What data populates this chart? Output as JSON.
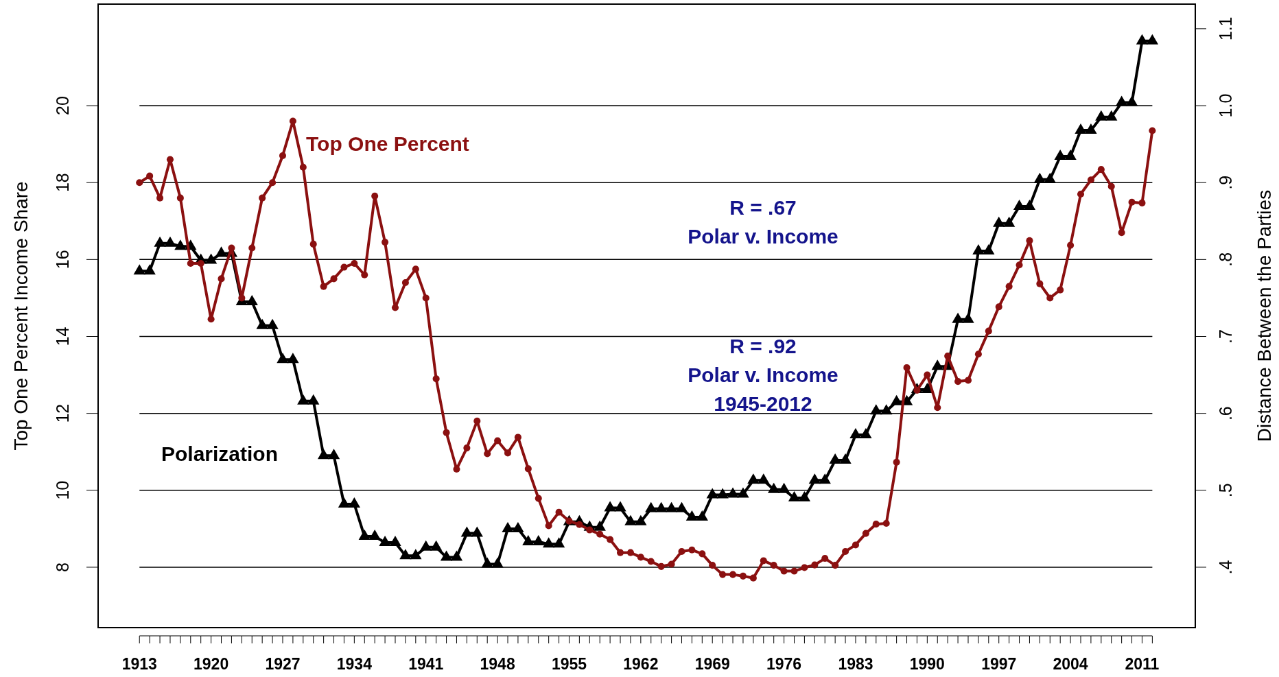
{
  "chart_data": {
    "type": "line",
    "ylabel": "Top One Percent Income Share",
    "y2label": "Distance Between the Parties",
    "x": [
      1913,
      1914,
      1915,
      1916,
      1917,
      1918,
      1919,
      1920,
      1921,
      1922,
      1923,
      1924,
      1925,
      1926,
      1927,
      1928,
      1929,
      1930,
      1931,
      1932,
      1933,
      1934,
      1935,
      1936,
      1937,
      1938,
      1939,
      1940,
      1941,
      1942,
      1943,
      1944,
      1945,
      1946,
      1947,
      1948,
      1949,
      1950,
      1951,
      1952,
      1953,
      1954,
      1955,
      1956,
      1957,
      1958,
      1959,
      1960,
      1961,
      1962,
      1963,
      1964,
      1965,
      1966,
      1967,
      1968,
      1969,
      1970,
      1971,
      1972,
      1973,
      1974,
      1975,
      1976,
      1977,
      1978,
      1979,
      1980,
      1981,
      1982,
      1983,
      1984,
      1985,
      1986,
      1987,
      1988,
      1989,
      1990,
      1991,
      1992,
      1993,
      1994,
      1995,
      1996,
      1997,
      1998,
      1999,
      2000,
      2001,
      2002,
      2003,
      2004,
      2005,
      2006,
      2007,
      2008,
      2009,
      2010,
      2011,
      2012
    ],
    "xlim": [
      1908.96,
      2016.2
    ],
    "xticks": [
      1913,
      {
        "value": 1914,
        "label": null
      },
      {
        "value": 1915,
        "label": null
      },
      {
        "value": 1916,
        "label": null
      },
      {
        "value": 1917,
        "label": null
      },
      {
        "value": 1918,
        "label": null
      },
      {
        "value": 1919,
        "label": null
      },
      1920,
      {
        "value": 1921,
        "label": null
      },
      {
        "value": 1922,
        "label": null
      },
      {
        "value": 1923,
        "label": null
      },
      {
        "value": 1924,
        "label": null
      },
      {
        "value": 1925,
        "label": null
      },
      {
        "value": 1926,
        "label": null
      },
      1927,
      {
        "value": 1928,
        "label": null
      },
      {
        "value": 1929,
        "label": null
      },
      {
        "value": 1930,
        "label": null
      },
      {
        "value": 1931,
        "label": null
      },
      {
        "value": 1932,
        "label": null
      },
      {
        "value": 1933,
        "label": null
      },
      1934,
      {
        "value": 1935,
        "label": null
      },
      {
        "value": 1936,
        "label": null
      },
      {
        "value": 1937,
        "label": null
      },
      {
        "value": 1938,
        "label": null
      },
      {
        "value": 1939,
        "label": null
      },
      {
        "value": 1940,
        "label": null
      },
      1941,
      {
        "value": 1942,
        "label": null
      },
      {
        "value": 1943,
        "label": null
      },
      {
        "value": 1944,
        "label": null
      },
      {
        "value": 1945,
        "label": null
      },
      {
        "value": 1946,
        "label": null
      },
      {
        "value": 1947,
        "label": null
      },
      1948,
      {
        "value": 1949,
        "label": null
      },
      {
        "value": 1950,
        "label": null
      },
      {
        "value": 1951,
        "label": null
      },
      {
        "value": 1952,
        "label": null
      },
      {
        "value": 1953,
        "label": null
      },
      {
        "value": 1954,
        "label": null
      },
      1955,
      {
        "value": 1956,
        "label": null
      },
      {
        "value": 1957,
        "label": null
      },
      {
        "value": 1958,
        "label": null
      },
      {
        "value": 1959,
        "label": null
      },
      {
        "value": 1960,
        "label": null
      },
      {
        "value": 1961,
        "label": null
      },
      1962,
      {
        "value": 1963,
        "label": null
      },
      {
        "value": 1964,
        "label": null
      },
      {
        "value": 1965,
        "label": null
      },
      {
        "value": 1966,
        "label": null
      },
      {
        "value": 1967,
        "label": null
      },
      {
        "value": 1968,
        "label": null
      },
      1969,
      {
        "value": 1970,
        "label": null
      },
      {
        "value": 1971,
        "label": null
      },
      {
        "value": 1972,
        "label": null
      },
      {
        "value": 1973,
        "label": null
      },
      {
        "value": 1974,
        "label": null
      },
      {
        "value": 1975,
        "label": null
      },
      1976,
      {
        "value": 1977,
        "label": null
      },
      {
        "value": 1978,
        "label": null
      },
      {
        "value": 1979,
        "label": null
      },
      {
        "value": 1980,
        "label": null
      },
      {
        "value": 1981,
        "label": null
      },
      {
        "value": 1982,
        "label": null
      },
      1983,
      {
        "value": 1984,
        "label": null
      },
      {
        "value": 1985,
        "label": null
      },
      {
        "value": 1986,
        "label": null
      },
      {
        "value": 1987,
        "label": null
      },
      {
        "value": 1988,
        "label": null
      },
      {
        "value": 1989,
        "label": null
      },
      1990,
      {
        "value": 1991,
        "label": null
      },
      {
        "value": 1992,
        "label": null
      },
      {
        "value": 1993,
        "label": null
      },
      {
        "value": 1994,
        "label": null
      },
      {
        "value": 1995,
        "label": null
      },
      {
        "value": 1996,
        "label": null
      },
      1997,
      {
        "value": 1998,
        "label": null
      },
      {
        "value": 1999,
        "label": null
      },
      {
        "value": 2000,
        "label": null
      },
      {
        "value": 2001,
        "label": null
      },
      {
        "value": 2002,
        "label": null
      },
      {
        "value": 2003,
        "label": null
      },
      2004,
      {
        "value": 2005,
        "label": null
      },
      {
        "value": 2006,
        "label": null
      },
      {
        "value": 2007,
        "label": null
      },
      {
        "value": 2008,
        "label": null
      },
      {
        "value": 2009,
        "label": null
      },
      {
        "value": 2010,
        "label": null
      },
      2011,
      {
        "value": 2012,
        "label": null
      }
    ],
    "ylim": [
      6.43,
      22.64
    ],
    "yticks": [
      8,
      10,
      12,
      14,
      16,
      18,
      20
    ],
    "y2lim": [
      0.3215,
      1.132
    ],
    "y2ticks": [
      {
        "value": 0.4,
        "label": ".4"
      },
      {
        "value": 0.5,
        "label": ".5"
      },
      {
        "value": 0.6,
        "label": ".6"
      },
      {
        "value": 0.7,
        "label": ".7"
      },
      {
        "value": 0.8,
        "label": ".8"
      },
      {
        "value": 0.9,
        "label": ".9"
      },
      {
        "value": 1.0,
        "label": "1.0"
      },
      {
        "value": 1.1,
        "label": "1.1"
      }
    ],
    "grid": "y",
    "series": [
      {
        "name": "Polarization",
        "color": "#000000",
        "axis": "y2",
        "marker": "triangle",
        "values": [
          0.785,
          0.785,
          0.821,
          0.821,
          0.817,
          0.817,
          0.799,
          0.799,
          0.808,
          0.808,
          0.745,
          0.745,
          0.714,
          0.714,
          0.67,
          0.67,
          0.616,
          0.616,
          0.545,
          0.545,
          0.482,
          0.482,
          0.44,
          0.44,
          0.432,
          0.432,
          0.415,
          0.415,
          0.426,
          0.426,
          0.413,
          0.413,
          0.444,
          0.444,
          0.404,
          0.404,
          0.45,
          0.45,
          0.433,
          0.433,
          0.43,
          0.43,
          0.459,
          0.459,
          0.452,
          0.452,
          0.477,
          0.477,
          0.459,
          0.459,
          0.476,
          0.476,
          0.476,
          0.476,
          0.465,
          0.465,
          0.494,
          0.494,
          0.495,
          0.495,
          0.513,
          0.513,
          0.501,
          0.501,
          0.49,
          0.49,
          0.513,
          0.513,
          0.539,
          0.539,
          0.572,
          0.572,
          0.603,
          0.603,
          0.615,
          0.615,
          0.631,
          0.631,
          0.661,
          0.661,
          0.722,
          0.722,
          0.811,
          0.811,
          0.847,
          0.847,
          0.869,
          0.869,
          0.904,
          0.904,
          0.934,
          0.934,
          0.968,
          0.968,
          0.985,
          0.985,
          1.004,
          1.004,
          1.084,
          1.084
        ]
      },
      {
        "name": "Top One Percent",
        "color": "#8b1010",
        "marker": "circle",
        "values": [
          18.0,
          18.17,
          17.6,
          18.6,
          17.6,
          15.9,
          15.9,
          14.45,
          15.5,
          16.3,
          15.0,
          16.3,
          17.6,
          18.0,
          18.7,
          19.6,
          18.4,
          16.4,
          15.3,
          15.5,
          15.8,
          15.9,
          15.6,
          17.65,
          16.45,
          14.75,
          15.4,
          15.75,
          15.0,
          12.9,
          11.5,
          10.55,
          11.1,
          11.8,
          10.95,
          11.29,
          10.97,
          11.38,
          10.56,
          9.79,
          9.08,
          9.43,
          9.2,
          9.11,
          8.97,
          8.86,
          8.72,
          8.38,
          8.38,
          8.26,
          8.15,
          8.02,
          8.08,
          8.41,
          8.45,
          8.35,
          8.05,
          7.81,
          7.81,
          7.77,
          7.72,
          8.17,
          8.05,
          7.9,
          7.9,
          7.99,
          8.06,
          8.23,
          8.05,
          8.41,
          8.58,
          8.88,
          9.12,
          9.14,
          10.73,
          13.19,
          12.6,
          13.0,
          12.15,
          13.49,
          12.83,
          12.86,
          13.54,
          14.14,
          14.77,
          15.3,
          15.86,
          16.49,
          15.37,
          15.0,
          15.21,
          16.37,
          17.7,
          18.07,
          18.34,
          17.9,
          16.7,
          17.49,
          17.47,
          19.35
        ]
      }
    ],
    "annotations": [
      "R = .67\nPolar v. Income",
      "R = .92\nPolar v. Income\n1945-2012"
    ]
  }
}
